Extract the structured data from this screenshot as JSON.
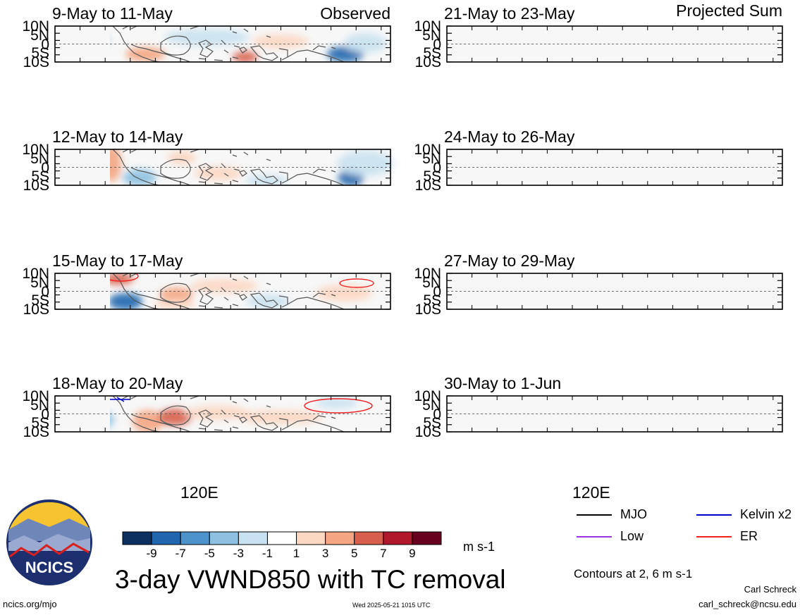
{
  "main_title": "3-day VWND850 with TC removal",
  "units": "m s-1",
  "contour_note": "Contours at 2, 6 m s-1",
  "author": "Carl Schreck",
  "email": "carl_schreck@ncsu.edu",
  "site": "ncics.org/mjo",
  "timestamp": "Wed 2025-05-21 1015 UTC",
  "logo_text": "NCICS",
  "columns": {
    "left_tag": "Observed",
    "right_tag": "Projected Sum"
  },
  "lat_labels": [
    "10N",
    "5N",
    "0",
    "5S",
    "10S"
  ],
  "lon_label": "120E",
  "panels": {
    "observed": [
      "9-May to 11-May",
      "12-May to 14-May",
      "15-May to 17-May",
      "18-May to 20-May"
    ],
    "projected": [
      "21-May to 23-May",
      "24-May to 26-May",
      "27-May to 29-May",
      "30-May to 1-Jun"
    ]
  },
  "colorbar": {
    "ticks": [
      "-9",
      "-7",
      "-5",
      "-3",
      "-1",
      "1",
      "3",
      "5",
      "7",
      "9"
    ],
    "colors": [
      "#0b2f5e",
      "#1f66ae",
      "#4d93cb",
      "#8ec1e1",
      "#c9e2f1",
      "#ffffff",
      "#fcd7c2",
      "#f4a582",
      "#d6604d",
      "#b2182b",
      "#67001f"
    ]
  },
  "legend": [
    {
      "label": "MJO",
      "color": "#000000"
    },
    {
      "label": "Kelvin x2",
      "color": "#0000cc"
    },
    {
      "label": "Low",
      "color": "#9933dd"
    },
    {
      "label": "ER",
      "color": "#ee2222"
    }
  ]
}
